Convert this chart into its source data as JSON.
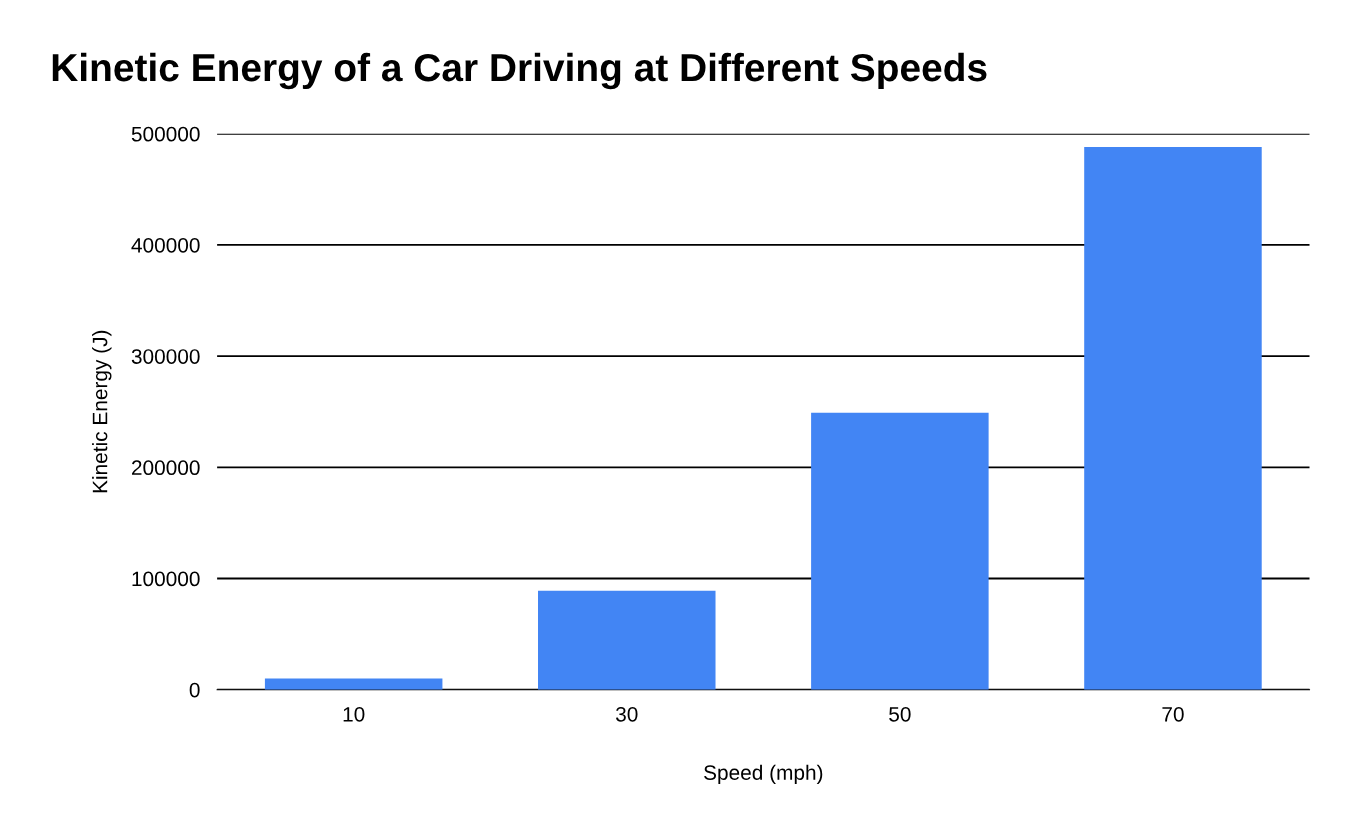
{
  "chart_data": {
    "type": "bar",
    "title": "Kinetic Energy of a Car Driving at Different Speeds",
    "xlabel": "Speed (mph)",
    "ylabel": "Kinetic Energy (J)",
    "categories": [
      "10",
      "30",
      "50",
      "70"
    ],
    "values": [
      10000,
      89000,
      249000,
      488000
    ],
    "color": "#4285f4",
    "ylim": [
      0,
      500000
    ],
    "yticks": [
      0,
      100000,
      200000,
      300000,
      400000,
      500000
    ],
    "grid": "y",
    "legend": false
  }
}
